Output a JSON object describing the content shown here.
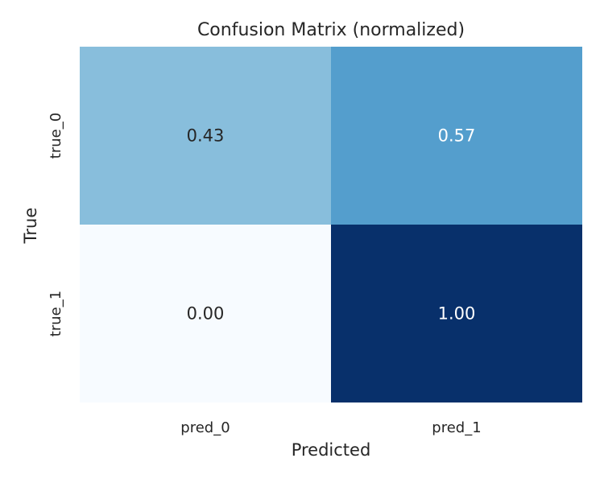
{
  "chart_data": {
    "type": "heatmap",
    "title": "Confusion Matrix (normalized)",
    "xlabel": "Predicted",
    "ylabel": "True",
    "x_categories": [
      "pred_0",
      "pred_1"
    ],
    "y_categories": [
      "true_0",
      "true_1"
    ],
    "values": [
      [
        0.43,
        0.57
      ],
      [
        0.0,
        1.0
      ]
    ],
    "value_labels": [
      [
        "0.43",
        "0.57"
      ],
      [
        "0.00",
        "1.00"
      ]
    ],
    "colormap": "Blues",
    "vmin": 0,
    "vmax": 1,
    "colorbar": false,
    "grid": false
  }
}
